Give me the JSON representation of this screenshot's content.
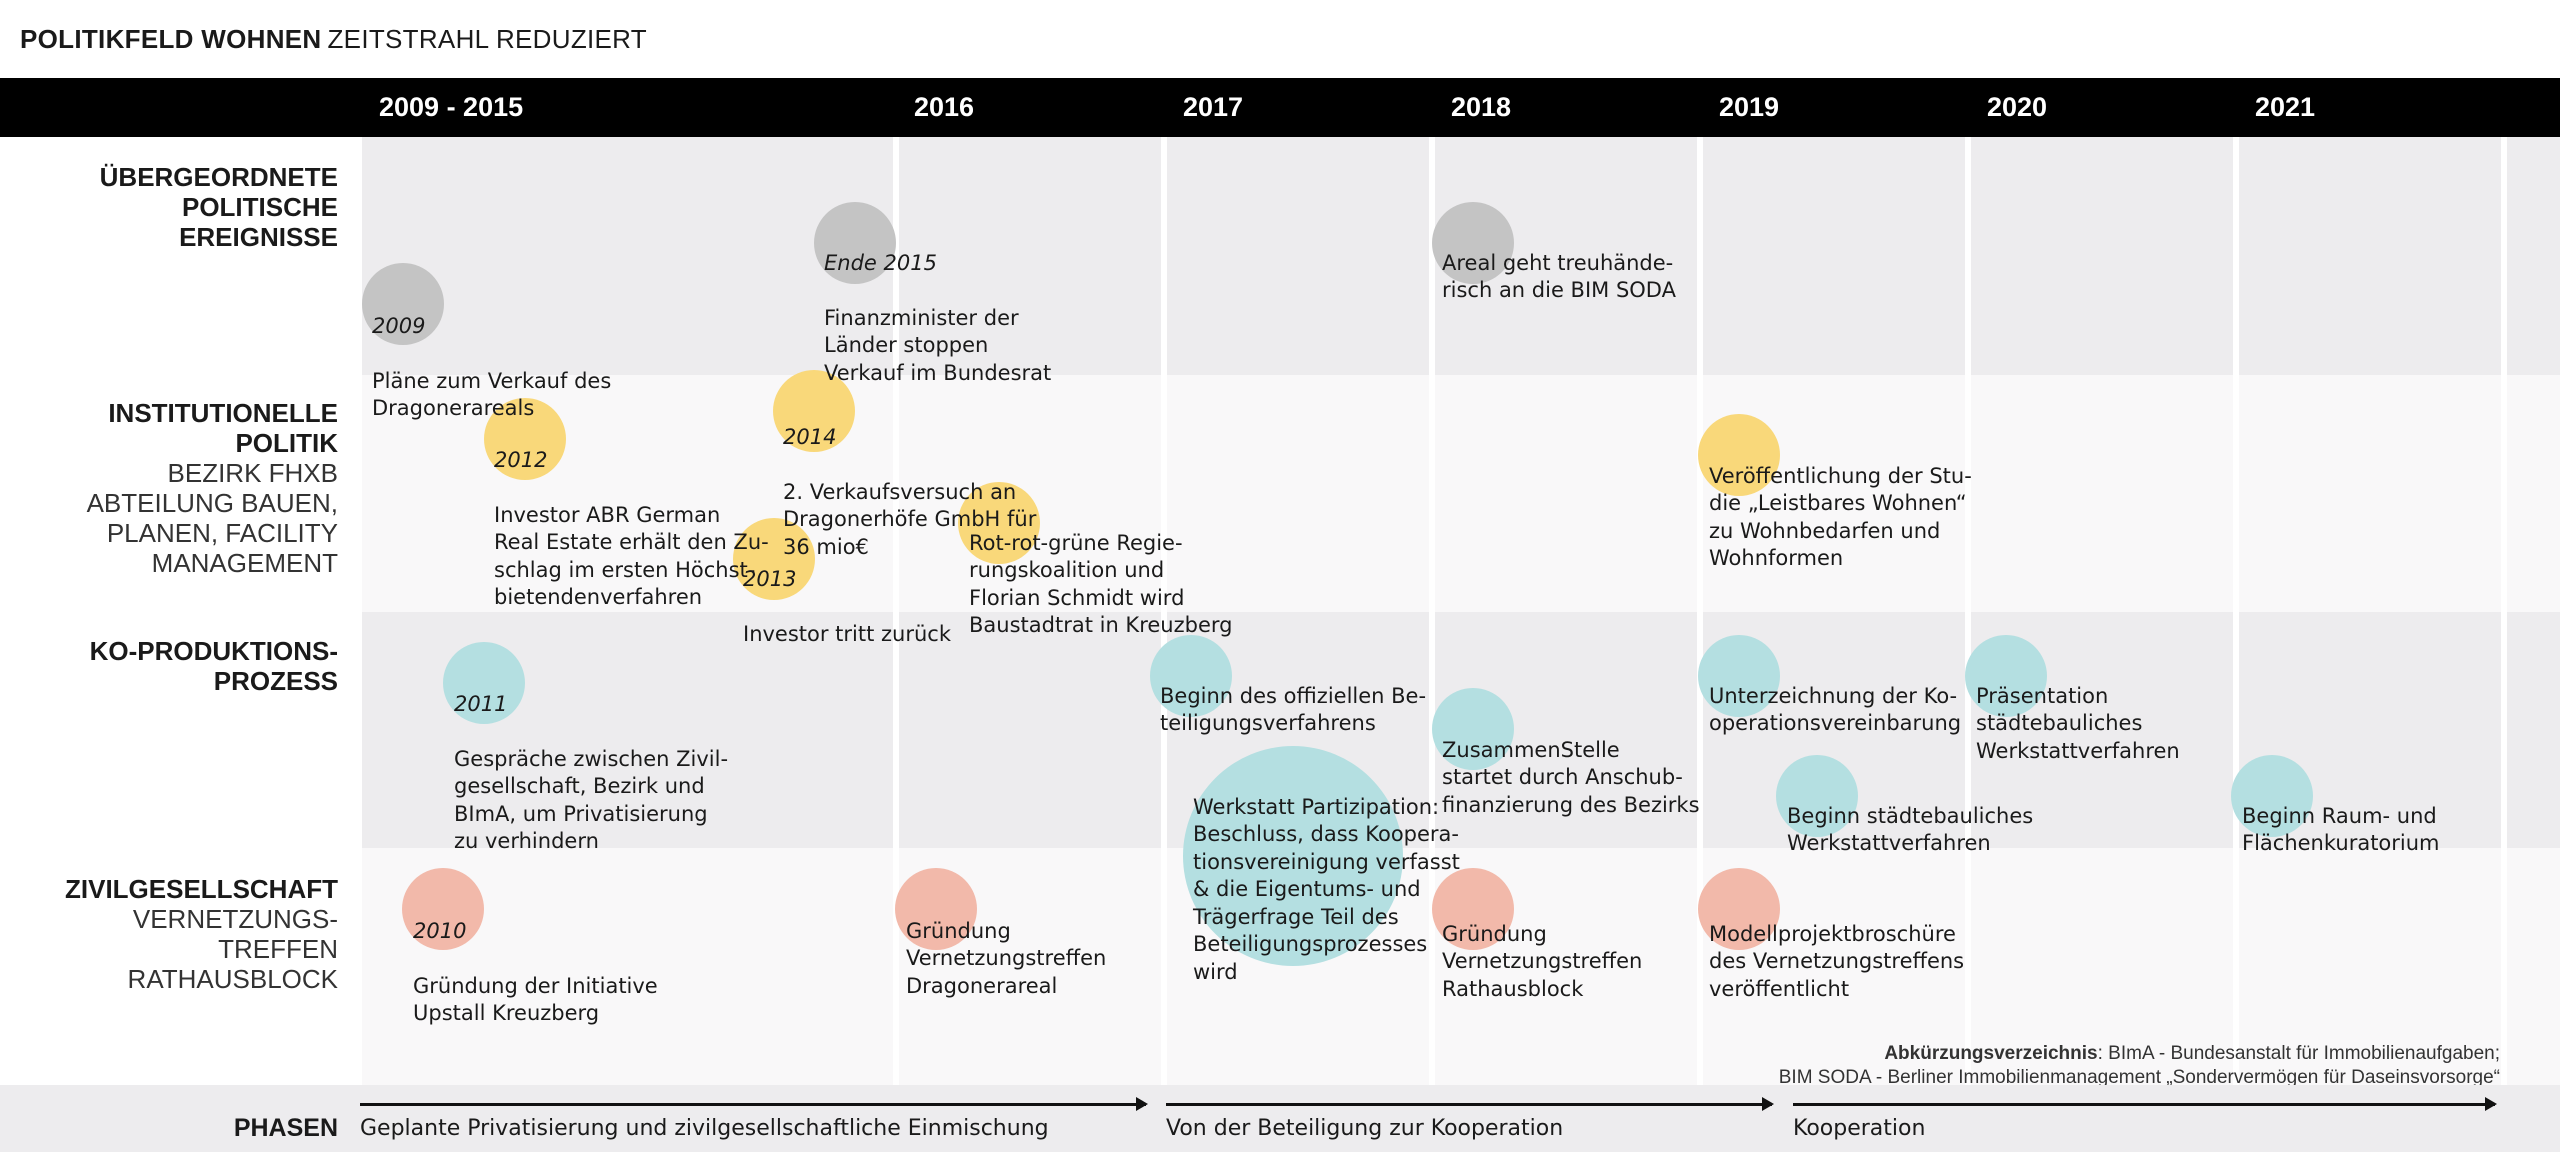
{
  "title": {
    "bold": "POLITIKFELD WOHNEN",
    "light": "ZEITSTRAHL REDUZIERT"
  },
  "years": [
    "2009 - 2015",
    "2016",
    "2017",
    "2018",
    "2019",
    "2020",
    "2021"
  ],
  "rows": {
    "political": {
      "bold": "ÜBERGEORDNETE POLITISCHE EREIGNISSE",
      "light": ""
    },
    "institutional": {
      "bold": "INSTITUTIONELLE POLITIK",
      "light": "BEZIRK FHXB ABTEILUNG BAUEN, PLANEN, FACILITY MANAGEMENT"
    },
    "coproduction": {
      "bold": "KO-PRODUKTIONS-PROZESS",
      "light": ""
    },
    "civil": {
      "bold": "ZIVILGESELLSCHAFT",
      "light": "VERNETZUNGS-TREFFEN RATHAUSBLOCK"
    }
  },
  "events": {
    "e2009": {
      "year": "2009",
      "text": "Pläne zum Verkauf des\nDragonerareals",
      "color": "#c4c4c4"
    },
    "e2015": {
      "year": "Ende 2015",
      "text": "Finanzminister der\nLänder stoppen\nVerkauf im Bundesrat",
      "color": "#c4c4c4"
    },
    "e2018a": {
      "year": "",
      "text": "Areal geht treuhände-\nrisch an die BIM SODA",
      "color": "#c4c4c4"
    },
    "e2012": {
      "year": "2012",
      "text": "Investor ABR German\nReal Estate erhält den Zu-\nschlag im ersten Höchst-\nbietendenverfahren",
      "color": "#f9d87a"
    },
    "e2014": {
      "year": "2014",
      "text": "2. Verkaufsversuch an\nDragonerhöfe GmbH für\n36 mio€",
      "color": "#f9d87a"
    },
    "e2013": {
      "year": "2013",
      "text": "Investor tritt zurück",
      "color": "#f9d87a"
    },
    "e2016y": {
      "year": "",
      "text": "Rot-rot-grüne Regie-\nrungskoalition und\nFlorian Schmidt wird\nBaustadtrat in Kreuzberg",
      "color": "#f9d87a"
    },
    "e2019y": {
      "year": "",
      "text": "Veröffentlichung der Stu-\ndie „Leistbares Wohnen“\nzu Wohnbedarfen und\nWohnformen",
      "color": "#f9d87a"
    },
    "e2011": {
      "year": "2011",
      "text": "Gespräche zwischen Zivil-\ngesellschaft, Bezirk und\nBImA, um Privatisierung\nzu verhindern",
      "color": "#b4dfe1"
    },
    "e2017a": {
      "year": "",
      "text": "Beginn des offiziellen Be-\nteiligungsverfahrens",
      "color": "#b4dfe1"
    },
    "e2017b": {
      "year": "",
      "text": "Werkstatt Partizipation:\nBeschluss, dass Koopera-\ntionsvereinigung verfasst\n& die Eigentums-  und\nTrägerfrage Teil des\nBeteiligungsprozesses\nwird",
      "color": "#b4dfe1"
    },
    "e2018b": {
      "year": "",
      "text": "ZusammenStelle\nstartet durch Anschub-\nfinanzierung des Bezirks",
      "color": "#b4dfe1"
    },
    "e2019a": {
      "year": "",
      "text": "Unterzeichnung der Ko-\noperationsvereinbarung",
      "color": "#b4dfe1"
    },
    "e2019b": {
      "year": "",
      "text": "Beginn städtebauliches\nWerkstattverfahren",
      "color": "#b4dfe1"
    },
    "e2020": {
      "year": "",
      "text": "Präsentation\nstädtebauliches\nWerkstattverfahren",
      "color": "#b4dfe1"
    },
    "e2021": {
      "year": "",
      "text": "Beginn Raum- und\nFlächenkuratorium",
      "color": "#b4dfe1"
    },
    "e2010": {
      "year": "2010",
      "text": "Gründung der Initiative\nUpstall Kreuzberg",
      "color": "#f2b9aa"
    },
    "e2016c": {
      "year": "",
      "text": "Gründung\nVernetzungstreffen\nDragonerareal",
      "color": "#f2b9aa"
    },
    "e2018c": {
      "year": "",
      "text": "Gründung\nVernetzungstreffen\nRathausblock",
      "color": "#f2b9aa"
    },
    "e2019c": {
      "year": "",
      "text": "Modellprojektbroschüre\ndes Vernetzungstreffens\nveröffentlicht",
      "color": "#f2b9aa"
    }
  },
  "abbreviations": {
    "title": "Abkürzungsverzeichnis",
    "line1": ": BImA - Bundesanstalt für Immobilienaufgaben;",
    "line2": "BIM SODA -  Berliner Immobilienmanagement  „Sondervermögen für Daseinsvorsorge“"
  },
  "phases": {
    "label": "PHASEN",
    "items": [
      "Geplante Privatisierung und zivilgesellschaftliche Einmischung",
      "Von der Beteiligung zur Kooperation",
      "Kooperation"
    ]
  }
}
